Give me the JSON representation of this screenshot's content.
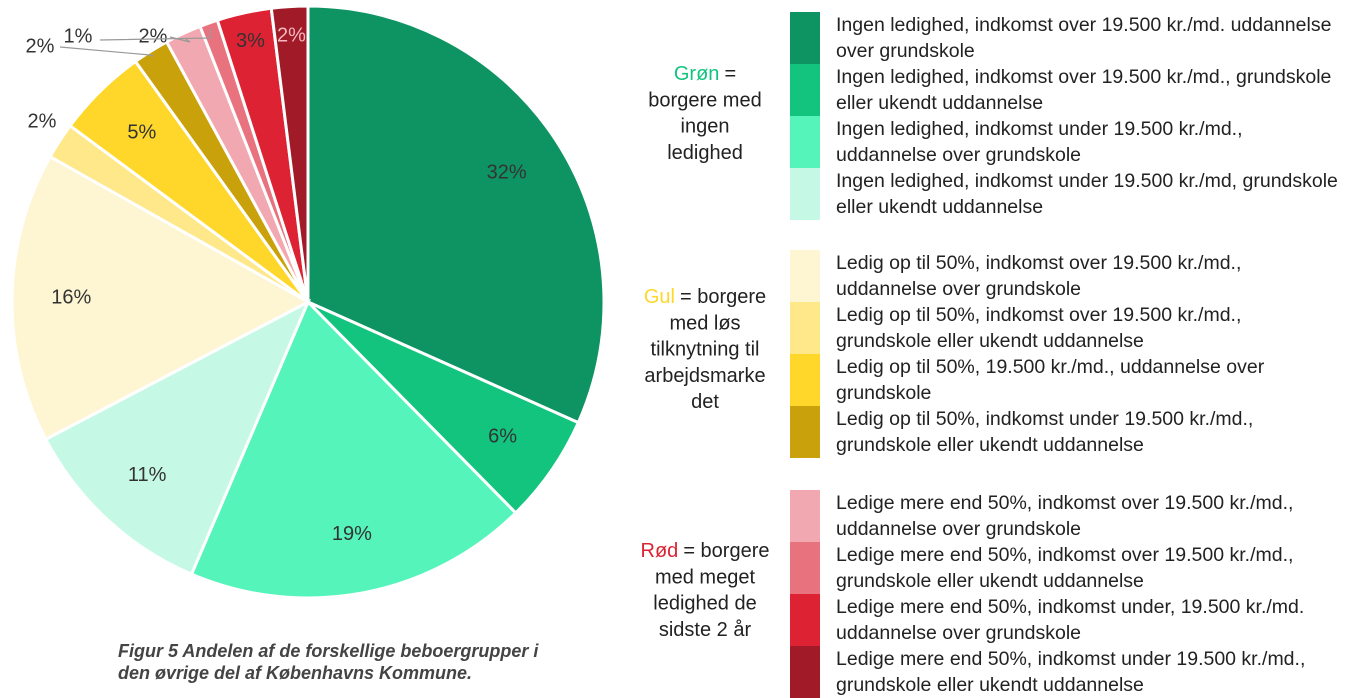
{
  "chart_data": {
    "type": "pie",
    "categories": [
      "Ingen ledighed, indkomst over 19.500 kr./md. uddannelse over grundskole",
      "Ingen ledighed, indkomst over 19.500 kr./md., grundskole eller ukendt uddannelse",
      "Ingen ledighed, indkomst under 19.500 kr./md., uddannelse over grundskole",
      "Ingen ledighed, indkomst under 19.500 kr./md, grundskole eller ukendt uddannelse",
      "Ledig op til 50%, indkomst over 19.500 kr./md., uddannelse over grundskole",
      "Ledig op til 50%, indkomst over 19.500 kr./md., grundskole eller ukendt uddannelse",
      "Ledig op til 50%, 19.500 kr./md., uddannelse over grundskole",
      "Ledig op til 50%, indkomst under 19.500 kr./md., grundskole eller ukendt uddannelse",
      "Ledige mere end 50%, indkomst over 19.500 kr./md., uddannelse over grundskole",
      "Ledige mere end 50%, indkomst over 19.500 kr./md., grundskole eller ukendt uddannelse",
      "Ledige mere end 50%, indkomst under, 19.500 kr./md. uddannelse over grundskole",
      "Ledige mere end 50%, indkomst under 19.500 kr./md., grundskole eller ukendt uddannelse"
    ],
    "values": [
      32,
      6,
      19,
      11,
      16,
      2,
      5,
      2,
      2,
      1,
      3,
      2
    ],
    "value_labels": [
      "32%",
      "6%",
      "19%",
      "11%",
      "16%",
      "2%",
      "5%",
      "2%",
      "2%",
      "1%",
      "3%",
      "2%"
    ],
    "colors": [
      "#0e9462",
      "#12c47e",
      "#55f4bb",
      "#c5f9e5",
      "#fef5d3",
      "#fee88a",
      "#fed72a",
      "#c9a10a",
      "#f2a8b0",
      "#e8737e",
      "#dd2233",
      "#a11a28"
    ],
    "groups": [
      {
        "name": "Grøn",
        "color": "#12c47e",
        "lines": [
          "=",
          "borgere med",
          "ingen",
          "ledighed"
        ]
      },
      {
        "name": "Gul",
        "color": "#fed72a",
        "lines": [
          "= borgere",
          "med løs",
          "tilknytning til",
          "arbejdsmarke",
          "det"
        ]
      },
      {
        "name": "Rød",
        "color": "#dd2233",
        "lines": [
          "= borgere",
          "med meget",
          "ledighed de",
          "sidste 2 år"
        ]
      }
    ]
  },
  "caption": "Figur 5 Andelen af de forskellige beboergrupper i den øvrige del af Københavns Kommune."
}
